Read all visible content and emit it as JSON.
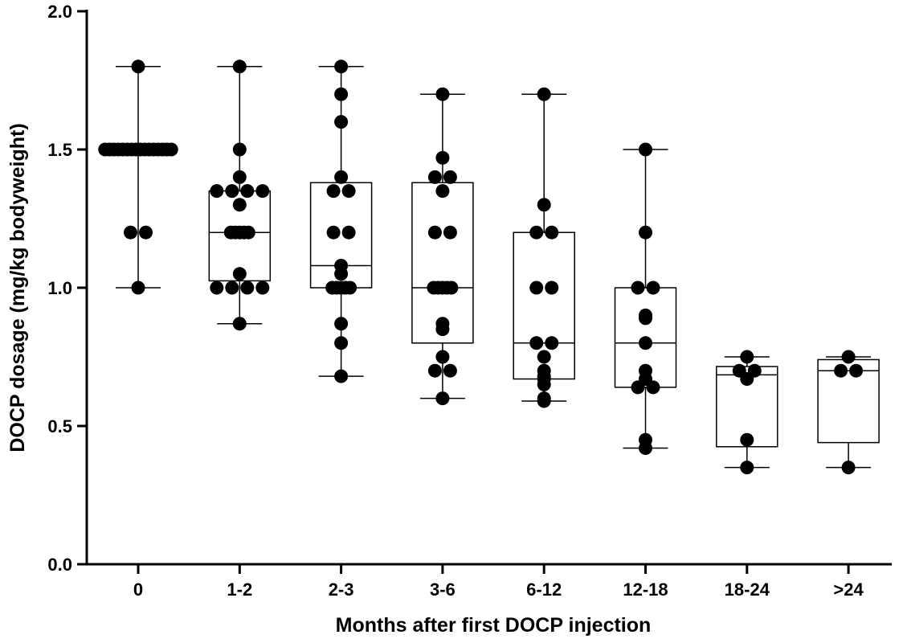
{
  "chart_data": {
    "type": "box",
    "title": "",
    "xlabel": "Months after first DOCP injection",
    "ylabel": "DOCP dosage (mg/kg bodyweight)",
    "ylim": [
      0,
      2.0
    ],
    "yticks": [
      "0.0",
      "0.5",
      "1.0",
      "1.5",
      "2.0"
    ],
    "ytick_values": [
      0,
      0.5,
      1.0,
      1.5,
      2.0
    ],
    "grid": false,
    "legend": "none",
    "categories": [
      "0",
      "1-2",
      "2-3",
      "3-6",
      "6-12",
      "12-18",
      "18-24",
      ">24"
    ],
    "boxes": [
      {
        "category": "0",
        "min": 1.0,
        "q1": 1.5,
        "median": 1.5,
        "q3": 1.5,
        "max": 1.8
      },
      {
        "category": "1-2",
        "min": 0.87,
        "q1": 1.025,
        "median": 1.2,
        "q3": 1.35,
        "max": 1.8
      },
      {
        "category": "2-3",
        "min": 0.68,
        "q1": 1.0,
        "median": 1.08,
        "q3": 1.38,
        "max": 1.8
      },
      {
        "category": "3-6",
        "min": 0.6,
        "q1": 0.8,
        "median": 1.0,
        "q3": 1.38,
        "max": 1.7
      },
      {
        "category": "6-12",
        "min": 0.59,
        "q1": 0.67,
        "median": 0.8,
        "q3": 1.2,
        "max": 1.7
      },
      {
        "category": "12-18",
        "min": 0.42,
        "q1": 0.64,
        "median": 0.8,
        "q3": 1.0,
        "max": 1.5
      },
      {
        "category": "18-24",
        "min": 0.35,
        "q1": 0.425,
        "median": 0.685,
        "q3": 0.715,
        "max": 0.75
      },
      {
        "category": ">24",
        "min": 0.35,
        "q1": 0.44,
        "median": 0.7,
        "q3": 0.74,
        "max": 0.75
      }
    ],
    "points": [
      {
        "category": "0",
        "values": [
          1.8,
          1.5,
          1.5,
          1.5,
          1.5,
          1.5,
          1.5,
          1.5,
          1.5,
          1.5,
          1.5,
          1.5,
          1.5,
          1.5,
          1.5,
          1.5,
          1.5,
          1.2,
          1.2,
          1.0
        ]
      },
      {
        "category": "1-2",
        "values": [
          1.8,
          1.5,
          1.4,
          1.35,
          1.35,
          1.3,
          1.35,
          1.35,
          1.2,
          1.2,
          1.2,
          1.2,
          1.2,
          1.05,
          1.0,
          1.0,
          1.0,
          1.0,
          0.87
        ]
      },
      {
        "category": "2-3",
        "values": [
          1.8,
          1.7,
          1.6,
          1.4,
          1.35,
          1.35,
          1.2,
          1.2,
          1.08,
          1.05,
          1.0,
          1.0,
          1.0,
          1.0,
          1.0,
          0.87,
          0.8,
          0.68
        ]
      },
      {
        "category": "3-6",
        "values": [
          1.7,
          1.47,
          1.4,
          1.4,
          1.35,
          1.2,
          1.2,
          1.0,
          1.0,
          1.0,
          1.0,
          1.0,
          0.87,
          0.85,
          0.75,
          0.7,
          0.7,
          0.6
        ]
      },
      {
        "category": "6-12",
        "values": [
          1.7,
          1.3,
          1.2,
          1.2,
          1.0,
          1.0,
          0.8,
          0.8,
          0.75,
          0.7,
          0.68,
          0.67,
          0.65,
          0.6,
          0.59
        ]
      },
      {
        "category": "12-18",
        "values": [
          1.5,
          1.2,
          1.0,
          1.0,
          0.9,
          0.89,
          0.8,
          0.7,
          0.67,
          0.64,
          0.64,
          0.45,
          0.42
        ]
      },
      {
        "category": "18-24",
        "values": [
          0.75,
          0.7,
          0.7,
          0.67,
          0.45,
          0.35
        ]
      },
      {
        "category": ">24",
        "values": [
          0.75,
          0.7,
          0.7,
          0.35
        ]
      }
    ]
  }
}
